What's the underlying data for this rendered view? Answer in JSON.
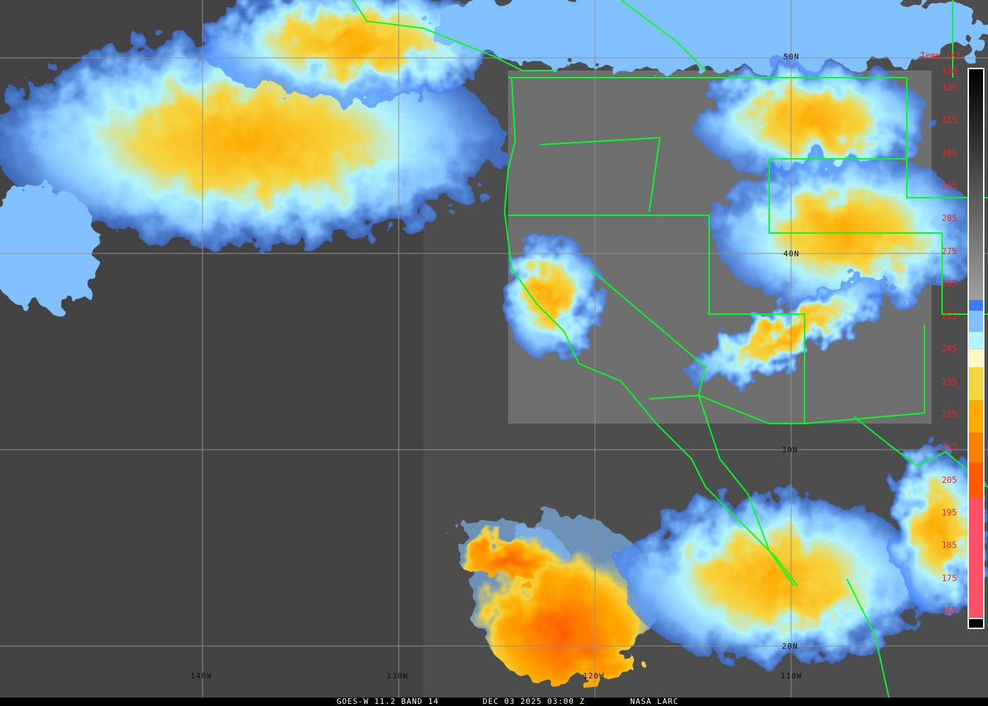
{
  "caption": {
    "satellite": "GOES-W 11.2 BAND 14",
    "datetime": "DEC 03 2025 03:00 Z",
    "source": "NASA LARC"
  },
  "grid": {
    "longitudes": [
      "140W",
      "130W",
      "120W",
      "110W"
    ],
    "latitudes": [
      "50N",
      "40N",
      "30N",
      "20N"
    ]
  },
  "colorbar": {
    "title": "Temp [K]",
    "ticks": [
      "330",
      "325",
      "315",
      "305",
      "295",
      "285",
      "275",
      "265",
      "255",
      "245",
      "235",
      "225",
      "215",
      "205",
      "195",
      "185",
      "175",
      "165"
    ],
    "colors": {
      "cold_pink": "#ff5068",
      "red_orange": "#ff5a00",
      "orange": "#ff8000",
      "amber": "#ffaa00",
      "yellow": "#f5d540",
      "cream": "#fff8c0",
      "cyan": "#b0f4ff",
      "light_blue": "#80c0ff",
      "blue": "#3a7cff"
    }
  },
  "map_colors": {
    "borders": "#00ff20",
    "grid": "#909090"
  }
}
